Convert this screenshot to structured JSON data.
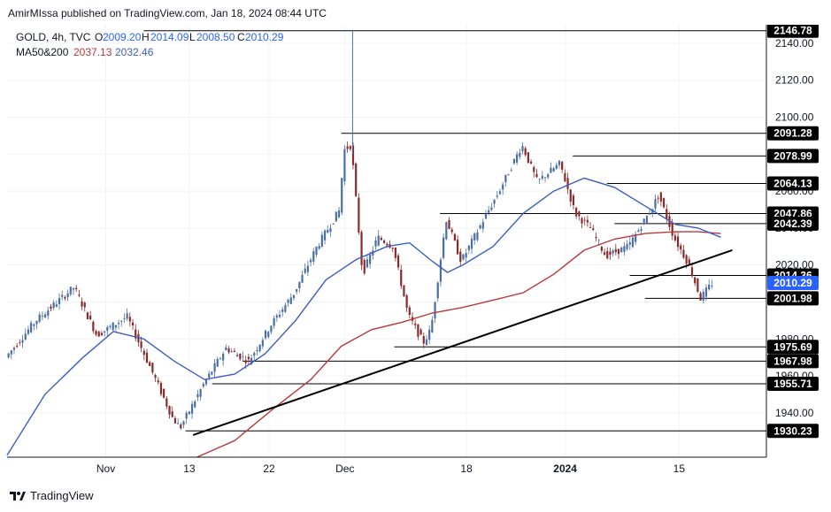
{
  "header": {
    "published": "AmirMIssa published on TradingView.com, Jan 18, 2024 08:44 UTC"
  },
  "legend": {
    "symbol": "GOLD, 4h, TVC",
    "o_label": "O",
    "o_value": "2009.20",
    "h_label": "H",
    "h_value": "2014.09",
    "l_label": "L",
    "l_value": "2008.50",
    "c_label": "C",
    "c_value": "2010.29",
    "ma_label": "MA50&200",
    "ma50_value": "2037.13",
    "ma200_value": "2032.46"
  },
  "footer": {
    "brand": "TradingView"
  },
  "colors": {
    "up": "#4a6fa5",
    "down": "#8b2a2a",
    "ma_short": "#3b5ec4",
    "ma_long": "#b73a3a",
    "trend": "#000000",
    "current_price_bg": "#2962ff",
    "level_bg": "#000000"
  },
  "chart_data": {
    "type": "candlestick",
    "title": "GOLD, 4h, TVC",
    "ylim": [
      1916,
      2150
    ],
    "y_ticks": [
      1940,
      1960,
      1980,
      2000,
      2020,
      2040,
      2060,
      2080,
      2100,
      2120,
      2140
    ],
    "x_tick_labels": [
      "Nov",
      "13",
      "22",
      "Dec",
      "18",
      "2024",
      "15"
    ],
    "hidden_tick_labels": [
      "1960.00",
      "1980.00",
      "2000.00",
      "2040.00",
      "2060.00"
    ],
    "current_price": "2010.29",
    "levels": [
      {
        "label": "2146.78",
        "value": 2146.78
      },
      {
        "label": "2091.28",
        "value": 2091.28
      },
      {
        "label": "2078.99",
        "value": 2078.99
      },
      {
        "label": "2064.13",
        "value": 2064.13
      },
      {
        "label": "2047.86",
        "value": 2047.86
      },
      {
        "label": "2042.39",
        "value": 2042.39
      },
      {
        "label": "2014.36",
        "value": 2014.36
      },
      {
        "label": "2001.98",
        "value": 2001.98
      },
      {
        "label": "1975.69",
        "value": 1975.69
      },
      {
        "label": "1967.98",
        "value": 1967.98
      },
      {
        "label": "1955.71",
        "value": 1955.71
      },
      {
        "label": "1930.23",
        "value": 1930.23
      }
    ],
    "ma50_path": [
      [
        0.0,
        1917
      ],
      [
        0.05,
        1950
      ],
      [
        0.1,
        1970
      ],
      [
        0.14,
        1984
      ],
      [
        0.18,
        1980
      ],
      [
        0.22,
        1968
      ],
      [
        0.26,
        1958
      ],
      [
        0.3,
        1961
      ],
      [
        0.34,
        1972
      ],
      [
        0.38,
        1990
      ],
      [
        0.42,
        2012
      ],
      [
        0.46,
        2023
      ],
      [
        0.5,
        2030
      ],
      [
        0.53,
        2032
      ],
      [
        0.56,
        2022
      ],
      [
        0.58,
        2016
      ],
      [
        0.6,
        2020
      ],
      [
        0.64,
        2030
      ],
      [
        0.68,
        2048
      ],
      [
        0.72,
        2060
      ],
      [
        0.76,
        2067
      ],
      [
        0.8,
        2062
      ],
      [
        0.84,
        2052
      ],
      [
        0.88,
        2042
      ],
      [
        0.91,
        2040
      ],
      [
        0.94,
        2035
      ]
    ],
    "ma200_path": [
      [
        0.25,
        1916
      ],
      [
        0.3,
        1925
      ],
      [
        0.35,
        1942
      ],
      [
        0.4,
        1958
      ],
      [
        0.44,
        1976
      ],
      [
        0.48,
        1985
      ],
      [
        0.52,
        1989
      ],
      [
        0.56,
        1994
      ],
      [
        0.6,
        1997
      ],
      [
        0.64,
        2001
      ],
      [
        0.68,
        2005
      ],
      [
        0.72,
        2015
      ],
      [
        0.76,
        2028
      ],
      [
        0.8,
        2034
      ],
      [
        0.84,
        2037
      ],
      [
        0.88,
        2038
      ],
      [
        0.91,
        2038
      ],
      [
        0.94,
        2037
      ]
    ],
    "trendline": [
      [
        0.245,
        1928
      ],
      [
        0.955,
        2028
      ]
    ],
    "anchors": [
      [
        0.0,
        1970
      ],
      [
        0.04,
        1990
      ],
      [
        0.09,
        2008
      ],
      [
        0.12,
        1982
      ],
      [
        0.16,
        1992
      ],
      [
        0.19,
        1965
      ],
      [
        0.22,
        1937
      ],
      [
        0.23,
        1932
      ],
      [
        0.26,
        1955
      ],
      [
        0.29,
        1975
      ],
      [
        0.32,
        1968
      ],
      [
        0.35,
        1988
      ],
      [
        0.38,
        2005
      ],
      [
        0.41,
        2030
      ],
      [
        0.44,
        2050
      ],
      [
        0.445,
        2082
      ],
      [
        0.455,
        2085
      ],
      [
        0.47,
        2015
      ],
      [
        0.49,
        2035
      ],
      [
        0.51,
        2030
      ],
      [
        0.53,
        1993
      ],
      [
        0.55,
        1978
      ],
      [
        0.56,
        1985
      ],
      [
        0.58,
        2045
      ],
      [
        0.6,
        2022
      ],
      [
        0.63,
        2045
      ],
      [
        0.65,
        2060
      ],
      [
        0.68,
        2085
      ],
      [
        0.7,
        2065
      ],
      [
        0.73,
        2075
      ],
      [
        0.75,
        2048
      ],
      [
        0.77,
        2040
      ],
      [
        0.79,
        2025
      ],
      [
        0.82,
        2030
      ],
      [
        0.85,
        2050
      ],
      [
        0.86,
        2058
      ],
      [
        0.88,
        2035
      ],
      [
        0.9,
        2020
      ],
      [
        0.915,
        2002
      ],
      [
        0.93,
        2010
      ]
    ]
  }
}
